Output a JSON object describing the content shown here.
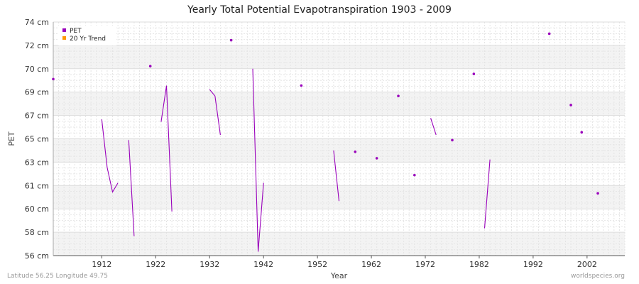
{
  "chart_data": {
    "type": "line",
    "title": "Yearly Total Potential Evapotranspiration 1903 - 2009",
    "xlabel": "Year",
    "ylabel": "PET",
    "xlim": [
      1903,
      2009
    ],
    "ylim": [
      56,
      74
    ],
    "y_ticks": [
      {
        "value": 56,
        "label": "56 cm"
      },
      {
        "value": 57.8,
        "label": "58 cm"
      },
      {
        "value": 59.6,
        "label": "60 cm"
      },
      {
        "value": 61.4,
        "label": "61 cm"
      },
      {
        "value": 63.2,
        "label": "63 cm"
      },
      {
        "value": 65,
        "label": "65 cm"
      },
      {
        "value": 66.8,
        "label": "67 cm"
      },
      {
        "value": 68.6,
        "label": "69 cm"
      },
      {
        "value": 70.4,
        "label": "70 cm"
      },
      {
        "value": 72.2,
        "label": "72 cm"
      },
      {
        "value": 74,
        "label": "74 cm"
      }
    ],
    "x_ticks": [
      {
        "value": 1912,
        "label": "1912"
      },
      {
        "value": 1922,
        "label": "1922"
      },
      {
        "value": 1932,
        "label": "1932"
      },
      {
        "value": 1942,
        "label": "1942"
      },
      {
        "value": 1952,
        "label": "1952"
      },
      {
        "value": 1962,
        "label": "1962"
      },
      {
        "value": 1972,
        "label": "1972"
      },
      {
        "value": 1982,
        "label": "1982"
      },
      {
        "value": 1992,
        "label": "1992"
      },
      {
        "value": 2002,
        "label": "2002"
      }
    ],
    "grid": true,
    "legend_position": "top-left",
    "colors": {
      "PET": "#9900bb",
      "trend": "#ff9900"
    },
    "series": [
      {
        "name": "PET",
        "points": [
          [
            1903,
            69.6
          ],
          [
            1912,
            66.5
          ],
          [
            1913,
            62.8
          ],
          [
            1914,
            60.9
          ],
          [
            1915,
            61.6
          ],
          [
            1917,
            64.9
          ],
          [
            1918,
            57.5
          ],
          [
            1921,
            70.6
          ],
          [
            1923,
            66.3
          ],
          [
            1924,
            69.1
          ],
          [
            1925,
            59.4
          ],
          [
            1932,
            68.8
          ],
          [
            1933,
            68.3
          ],
          [
            1934,
            65.3
          ],
          [
            1936,
            72.6
          ],
          [
            1940,
            70.4
          ],
          [
            1941,
            56.3
          ],
          [
            1942,
            61.6
          ],
          [
            1949,
            69.1
          ],
          [
            1955,
            64.1
          ],
          [
            1956,
            60.2
          ],
          [
            1959,
            64
          ],
          [
            1963,
            63.5
          ],
          [
            1967,
            68.3
          ],
          [
            1970,
            62.2
          ],
          [
            1973,
            66.6
          ],
          [
            1974,
            65.3
          ],
          [
            1977,
            64.9
          ],
          [
            1981,
            70
          ],
          [
            1983,
            58.1
          ],
          [
            1984,
            63.4
          ],
          [
            1995,
            73.1
          ],
          [
            1999,
            67.6
          ],
          [
            2001,
            65.5
          ],
          [
            2004,
            60.8
          ]
        ]
      },
      {
        "name": "20 Yr Trend",
        "points": []
      }
    ]
  },
  "footer": {
    "location": "Latitude 56.25 Longitude 49.75",
    "source": "worldspecies.org"
  }
}
